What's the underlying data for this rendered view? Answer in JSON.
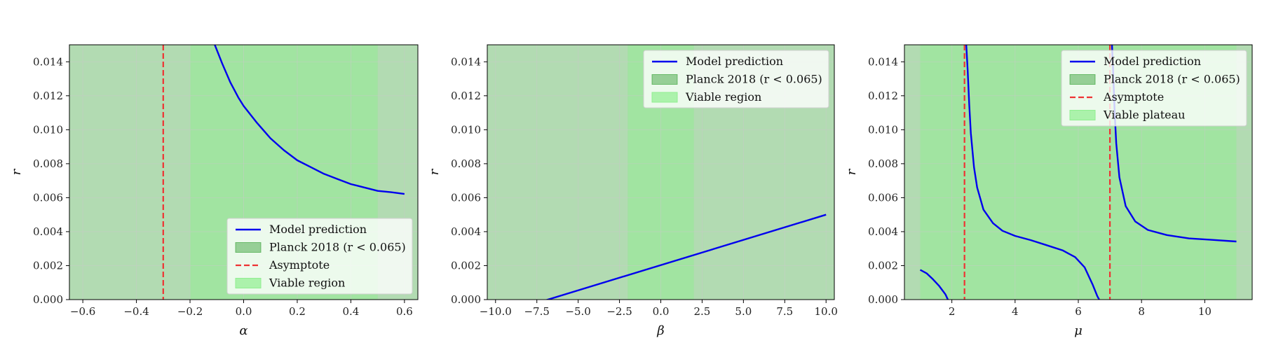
{
  "colors": {
    "model": "#0000ee",
    "planck_fill": "#2e9c2e",
    "asymptote": "#ee3333",
    "viable_fill": "#90ee90",
    "grid": "#c8c8c8"
  },
  "chart_data": [
    {
      "type": "line",
      "xlabel": "α",
      "ylabel": "r",
      "xlim": [
        -0.65,
        0.65
      ],
      "ylim": [
        0,
        0.015
      ],
      "xticks": [
        -0.6,
        -0.4,
        -0.2,
        0.0,
        0.2,
        0.4,
        0.6
      ],
      "xtick_labels": [
        "−0.6",
        "−0.4",
        "−0.2",
        "0.0",
        "0.2",
        "0.4",
        "0.6"
      ],
      "yticks": [
        0,
        0.002,
        0.004,
        0.006,
        0.008,
        0.01,
        0.012,
        0.014
      ],
      "ytick_labels": [
        "0.000",
        "0.002",
        "0.004",
        "0.006",
        "0.008",
        "0.010",
        "0.012",
        "0.014"
      ],
      "grid": true,
      "legend_position": "lower-right",
      "legend": [
        "Model prediction",
        "Planck 2018 (r < 0.065)",
        "Asymptote",
        "Viable region"
      ],
      "planck_band": [
        -0.65,
        0.65
      ],
      "viable_band": [
        -0.2,
        0.5
      ],
      "asymptotes": [
        -0.3
      ],
      "series": [
        {
          "name": "Model prediction",
          "x": [
            -0.11,
            -0.08,
            -0.05,
            -0.02,
            0.0,
            0.05,
            0.1,
            0.15,
            0.2,
            0.25,
            0.3,
            0.35,
            0.4,
            0.45,
            0.5,
            0.55,
            0.6
          ],
          "y": [
            0.0151,
            0.0139,
            0.0128,
            0.0119,
            0.0114,
            0.0104,
            0.0095,
            0.0088,
            0.0082,
            0.0078,
            0.0074,
            0.0071,
            0.0068,
            0.0066,
            0.0064,
            0.00632,
            0.00622
          ]
        }
      ]
    },
    {
      "type": "line",
      "xlabel": "β",
      "ylabel": "r",
      "xlim": [
        -10.5,
        10.5
      ],
      "ylim": [
        0,
        0.015
      ],
      "xticks": [
        -10,
        -7.5,
        -5,
        -2.5,
        0,
        2.5,
        5,
        7.5,
        10
      ],
      "xtick_labels": [
        "−10.0",
        "−7.5",
        "−5.0",
        "−2.5",
        "0.0",
        "2.5",
        "5.0",
        "7.5",
        "10.0"
      ],
      "yticks": [
        0,
        0.002,
        0.004,
        0.006,
        0.008,
        0.01,
        0.012,
        0.014
      ],
      "ytick_labels": [
        "0.000",
        "0.002",
        "0.004",
        "0.006",
        "0.008",
        "0.010",
        "0.012",
        "0.014"
      ],
      "grid": true,
      "legend_position": "top-right",
      "legend": [
        "Model prediction",
        "Planck 2018 (r < 0.065)",
        "Viable region"
      ],
      "planck_band": [
        -10.5,
        10.5
      ],
      "viable_band": [
        -2,
        2
      ],
      "asymptotes": [],
      "series": [
        {
          "name": "Model prediction",
          "x": [
            -7,
            10
          ],
          "y": [
            -5e-05,
            0.005
          ]
        }
      ]
    },
    {
      "type": "line",
      "xlabel": "μ",
      "ylabel": "r",
      "xlim": [
        0.5,
        11.5
      ],
      "ylim": [
        0,
        0.015
      ],
      "xticks": [
        2,
        4,
        6,
        8,
        10
      ],
      "xtick_labels": [
        "2",
        "4",
        "6",
        "8",
        "10"
      ],
      "yticks": [
        0,
        0.002,
        0.004,
        0.006,
        0.008,
        0.01,
        0.012,
        0.014
      ],
      "ytick_labels": [
        "0.000",
        "0.002",
        "0.004",
        "0.006",
        "0.008",
        "0.010",
        "0.012",
        "0.014"
      ],
      "grid": true,
      "legend_position": "top-right",
      "legend": [
        "Model prediction",
        "Planck 2018 (r < 0.065)",
        "Asymptote",
        "Viable plateau"
      ],
      "planck_band": [
        0.5,
        11.5
      ],
      "viable_band": [
        1,
        11
      ],
      "asymptotes": [
        2.4,
        7.0
      ],
      "series": [
        {
          "name": "Model prediction",
          "segments": [
            {
              "x": [
                1.0,
                1.2,
                1.4,
                1.6,
                1.8,
                1.9
              ],
              "y": [
                0.00175,
                0.00155,
                0.0012,
                0.0008,
                0.0003,
                -0.0001
              ]
            },
            {
              "x": [
                2.45,
                2.5,
                2.55,
                2.6,
                2.7,
                2.8,
                3.0,
                3.3,
                3.6,
                4.0,
                4.5,
                5.0,
                5.5,
                5.9,
                6.2,
                6.45,
                6.6,
                6.72
              ],
              "y": [
                0.0152,
                0.0135,
                0.0115,
                0.0098,
                0.0078,
                0.0066,
                0.0053,
                0.0045,
                0.00405,
                0.00375,
                0.0035,
                0.0032,
                0.0029,
                0.0025,
                0.0019,
                0.0009,
                0.0002,
                -0.0002
              ]
            },
            {
              "x": [
                7.06,
                7.1,
                7.15,
                7.2,
                7.3,
                7.5,
                7.8,
                8.2,
                8.8,
                9.5,
                10.2,
                11.0
              ],
              "y": [
                0.0152,
                0.0135,
                0.011,
                0.0092,
                0.0072,
                0.0055,
                0.0046,
                0.0041,
                0.0038,
                0.0036,
                0.00352,
                0.00342
              ]
            }
          ]
        }
      ]
    }
  ]
}
